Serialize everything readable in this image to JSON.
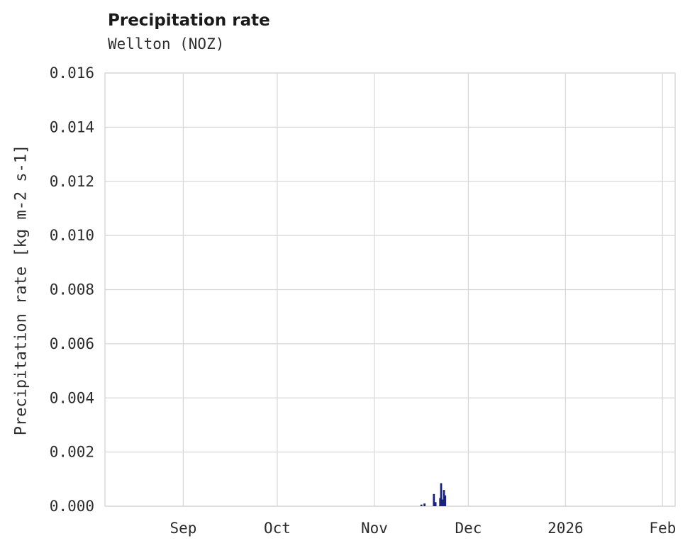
{
  "chart_data": {
    "type": "bar",
    "title": "Precipitation rate",
    "subtitle": "Wellton (NOZ)",
    "xlabel": "",
    "ylabel": "Precipitation rate [kg m-2 s-1]",
    "ylim": [
      0,
      0.016
    ],
    "yticks": [
      0,
      0.002,
      0.004,
      0.006,
      0.008,
      0.01,
      0.012,
      0.014,
      0.016
    ],
    "ytick_decimals": 3,
    "x_epoch": "2025-08-01",
    "x_domain_days": [
      6,
      188
    ],
    "xticks": [
      {
        "day": 31,
        "label": "Sep"
      },
      {
        "day": 61,
        "label": "Oct"
      },
      {
        "day": 92,
        "label": "Nov"
      },
      {
        "day": 122,
        "label": "Dec"
      },
      {
        "day": 153,
        "label": "2026"
      },
      {
        "day": 184,
        "label": "Feb"
      }
    ],
    "grid": true,
    "legend": false,
    "colors": {
      "background": "#ffffff",
      "grid": "#d7d7d7",
      "text": "#2b2b2b",
      "bar": "#1a237e"
    },
    "series": [
      {
        "name": "Precipitation rate",
        "color": "#1a237e",
        "points": [
          {
            "date": "2025-11-16",
            "day": 107.0,
            "value": 6e-05
          },
          {
            "date": "2025-11-17",
            "day": 108.0,
            "value": 0.0001
          },
          {
            "date": "2025-11-20",
            "day": 111.0,
            "value": 0.00045
          },
          {
            "date": "2025-11-20",
            "day": 111.5,
            "value": 0.00015
          },
          {
            "date": "2025-11-22",
            "day": 113.0,
            "value": 0.0003
          },
          {
            "date": "2025-11-22",
            "day": 113.3,
            "value": 0.00085
          },
          {
            "date": "2025-11-22",
            "day": 113.7,
            "value": 0.00025
          },
          {
            "date": "2025-11-23",
            "day": 114.2,
            "value": 0.0006
          },
          {
            "date": "2025-11-23",
            "day": 114.6,
            "value": 0.0004
          }
        ]
      }
    ]
  }
}
